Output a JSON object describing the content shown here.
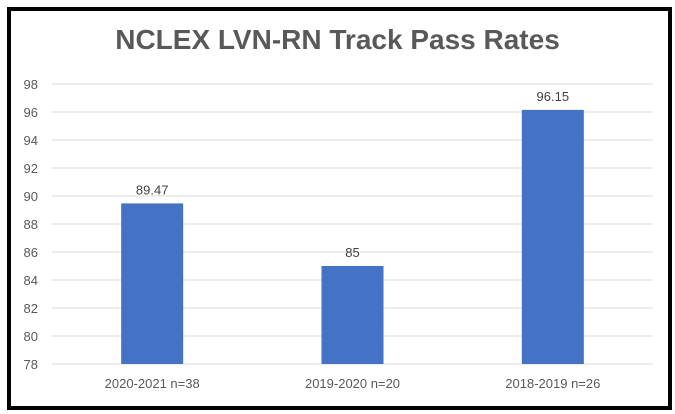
{
  "chart_data": {
    "type": "bar",
    "title": "NCLEX LVN-RN Track Pass Rates",
    "categories": [
      "2020-2021 n=38",
      "2019-2020 n=20",
      "2018-2019 n=26"
    ],
    "values": [
      89.47,
      85,
      96.15
    ],
    "data_labels": [
      "89.47",
      "85",
      "96.15"
    ],
    "xlabel": "",
    "ylabel": "",
    "ylim": [
      78,
      98
    ],
    "yticks": [
      78,
      80,
      82,
      84,
      86,
      88,
      90,
      92,
      94,
      96,
      98
    ],
    "grid": true,
    "legend": "none",
    "bar_color": "#4472C4"
  }
}
